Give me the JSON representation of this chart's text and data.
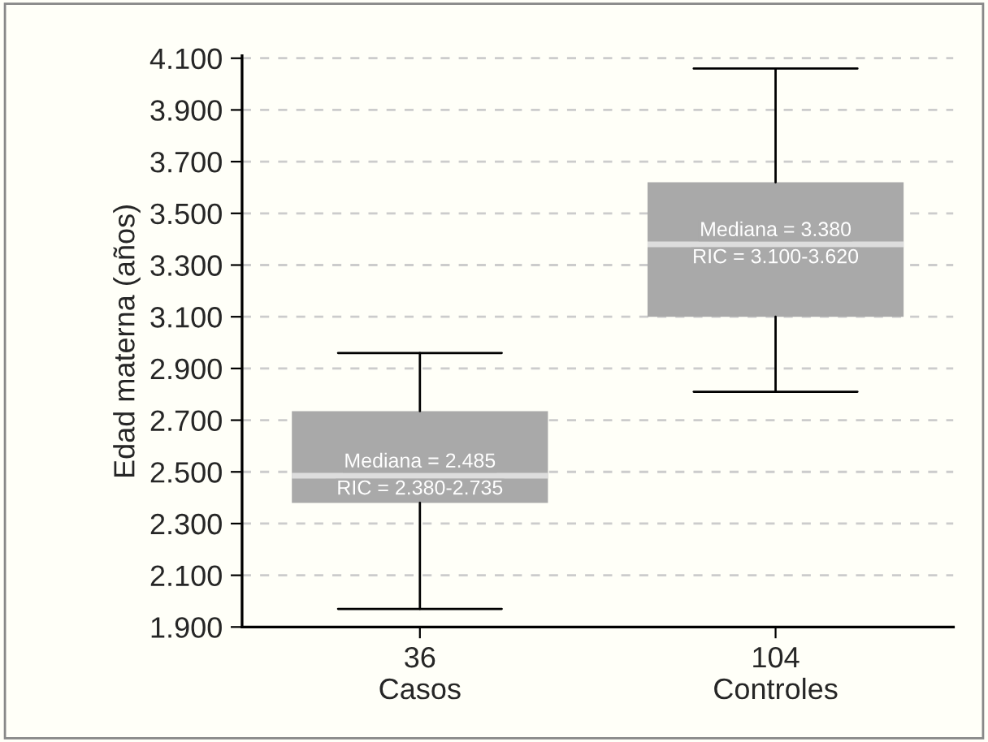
{
  "chart_data": {
    "type": "box",
    "ylabel": "Edad materna (años)",
    "categories": [
      "36\nCasos",
      "104\nControles"
    ],
    "boxes": [
      {
        "low": 1.97,
        "q1": 2.38,
        "median": 2.485,
        "q3": 2.735,
        "high": 2.96
      },
      {
        "low": 2.81,
        "q1": 3.1,
        "median": 3.38,
        "q3": 3.62,
        "high": 4.06
      }
    ],
    "color": "#a9a9a9",
    "ylim": [
      1.9,
      4.11
    ],
    "yticks": [
      {
        "value": 1.9,
        "label": "1.900"
      },
      {
        "value": 2.1,
        "label": "2.100"
      },
      {
        "value": 2.3,
        "label": "2.300"
      },
      {
        "value": 2.5,
        "label": "2.500"
      },
      {
        "value": 2.7,
        "label": "2.700"
      },
      {
        "value": 2.9,
        "label": "2.900"
      },
      {
        "value": 3.1,
        "label": "3.100"
      },
      {
        "value": 3.3,
        "label": "3.300"
      },
      {
        "value": 3.5,
        "label": "3.500"
      },
      {
        "value": 3.7,
        "label": "3.700"
      },
      {
        "value": 3.9,
        "label": "3.900"
      },
      {
        "value": 4.1,
        "label": "4.100"
      }
    ],
    "grid": "y",
    "annotations": [
      {
        "text": "Mediana = 2.485",
        "x": "36\nCasos",
        "y": 2.485
      },
      {
        "text": "RIC = 2.380-2.735",
        "x": "36\nCasos",
        "y": 2.485
      },
      {
        "text": "Mediana = 3.380",
        "x": "104\nControles",
        "y": 3.38
      },
      {
        "text": "RIC = 3.100-3.620",
        "x": "104\nControles",
        "y": 3.38
      }
    ]
  }
}
